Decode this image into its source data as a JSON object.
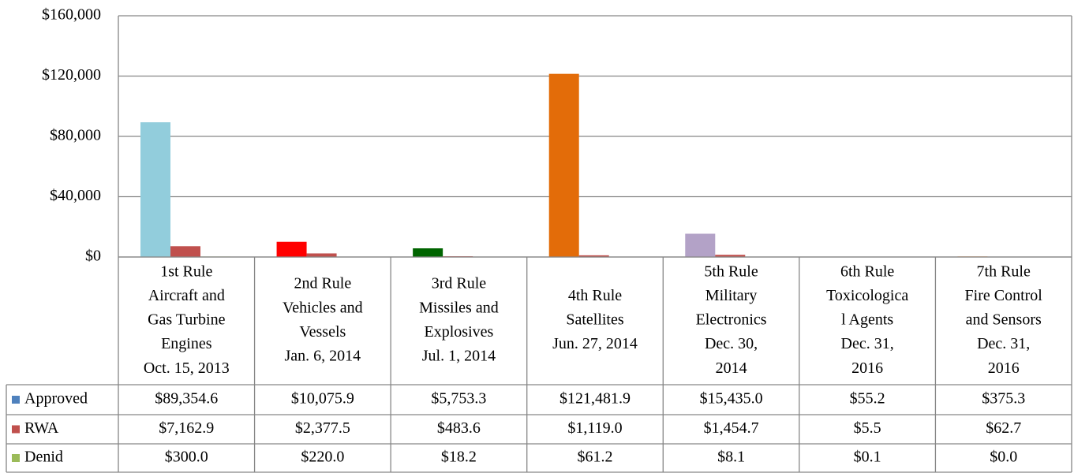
{
  "chart_data": {
    "type": "bar",
    "categories": [
      [
        "1st Rule",
        "Aircraft and",
        "Gas Turbine",
        "Engines",
        "Oct. 15, 2013"
      ],
      [
        "2nd Rule",
        "Vehicles and",
        "Vessels",
        "Jan. 6, 2014"
      ],
      [
        "3rd Rule",
        "Missiles and",
        "Explosives",
        "Jul. 1, 2014"
      ],
      [
        "4th Rule",
        "Satellites",
        "Jun. 27, 2014"
      ],
      [
        "5th Rule",
        "Military",
        "Electronics",
        "Dec. 30,",
        "2014"
      ],
      [
        "6th Rule",
        "Toxicologica",
        "l Agents",
        "Dec. 31,",
        "2016"
      ],
      [
        "7th Rule",
        "Fire Control",
        "and Sensors",
        "Dec. 31,",
        "2016"
      ]
    ],
    "series": [
      {
        "name": "Approved",
        "color": "#4f81bd",
        "colors": [
          "#92cddc",
          "#ff0000",
          "#006400",
          "#e36c09",
          "#b3a2c7",
          "#8064a2",
          "#f79646"
        ],
        "values": [
          89354.6,
          10075.9,
          5753.3,
          121481.9,
          15435.0,
          55.2,
          375.3
        ],
        "value_labels": [
          "$89,354.6",
          "$10,075.9",
          "$5,753.3",
          "$121,481.9",
          "$15,435.0",
          "$55.2",
          "$375.3"
        ]
      },
      {
        "name": "RWA",
        "color": "#c0504d",
        "values": [
          7162.9,
          2377.5,
          483.6,
          1119.0,
          1454.7,
          5.5,
          62.7
        ],
        "value_labels": [
          "$7,162.9",
          "$2,377.5",
          "$483.6",
          "$1,119.0",
          "$1,454.7",
          "$5.5",
          "$62.7"
        ]
      },
      {
        "name": "Denid",
        "color": "#9bbb59",
        "values": [
          300.0,
          220.0,
          18.2,
          61.2,
          8.1,
          0.1,
          0.0
        ],
        "value_labels": [
          "$300.0",
          "$220.0",
          "$18.2",
          "$61.2",
          "$8.1",
          "$0.1",
          "$0.0"
        ]
      }
    ],
    "ylim": [
      0,
      160000
    ],
    "yticks": [
      {
        "value": 0,
        "label": "$0"
      },
      {
        "value": 40000,
        "label": "$40,000"
      },
      {
        "value": 80000,
        "label": "$80,000"
      },
      {
        "value": 120000,
        "label": "$120,000"
      },
      {
        "value": 160000,
        "label": "$160,000"
      }
    ],
    "grid": true
  }
}
